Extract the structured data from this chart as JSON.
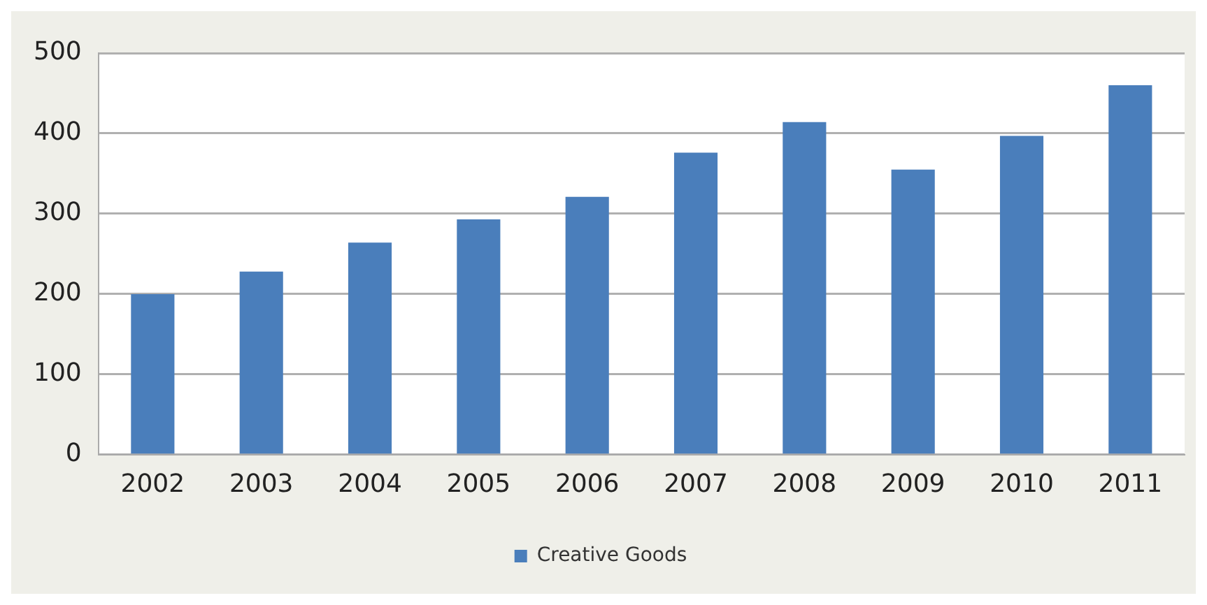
{
  "chart_data": {
    "type": "bar",
    "categories": [
      "2002",
      "2003",
      "2004",
      "2005",
      "2006",
      "2007",
      "2008",
      "2009",
      "2010",
      "2011"
    ],
    "series": [
      {
        "name": "Creative Goods",
        "color": "#4a7ebb",
        "values": [
          200,
          228,
          264,
          293,
          321,
          376,
          414,
          355,
          397,
          460
        ]
      }
    ],
    "ylim": [
      0,
      500
    ],
    "yticks": [
      0,
      100,
      200,
      300,
      400,
      500
    ],
    "grid": "y",
    "legend": "bottom"
  }
}
